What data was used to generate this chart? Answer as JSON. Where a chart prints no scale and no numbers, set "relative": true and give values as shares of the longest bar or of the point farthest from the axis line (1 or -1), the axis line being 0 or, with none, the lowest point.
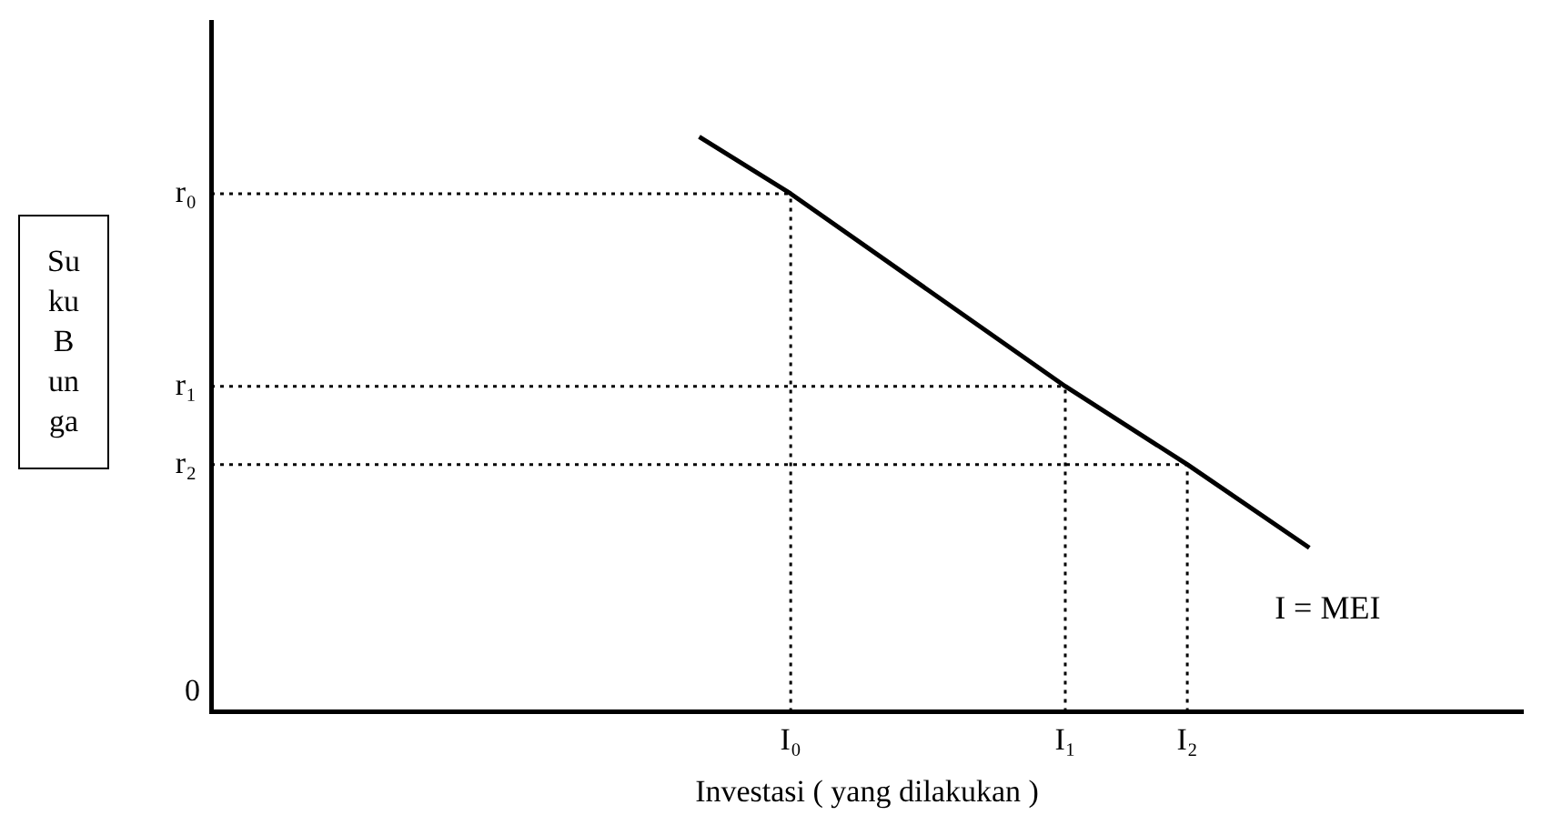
{
  "chart_data": {
    "type": "line",
    "relative": true,
    "xlabel": "Investasi ( yang dilakukan )",
    "ylabel": "Su ku B un ga",
    "categories": [
      null,
      null,
      null,
      null,
      null,
      null,
      null,
      null,
      null,
      null,
      null,
      null,
      null,
      null,
      null,
      null,
      null,
      null,
      null,
      "I₀",
      null,
      null,
      null,
      null,
      null,
      null,
      null,
      null,
      "I₁",
      null,
      null,
      null,
      "I₂",
      null,
      null,
      null,
      null,
      null,
      null,
      null,
      null,
      null,
      null,
      null
    ],
    "grid": false,
    "legend": false,
    "marker": "none",
    "series": [
      {
        "color": "#000000",
        "line_style": "solid",
        "values": [
          null,
          null,
          null,
          null,
          null,
          null,
          null,
          null,
          null,
          null,
          null,
          null,
          null,
          null,
          null,
          null,
          1,
          null,
          null,
          0.901,
          null,
          null,
          null,
          null,
          null,
          null,
          null,
          null,
          0.566,
          null,
          null,
          null,
          0.43,
          null,
          null,
          null,
          0.285,
          null,
          null,
          null,
          null,
          null,
          null,
          null
        ]
      }
    ],
    "ref_lines": [
      {
        "axis": "y",
        "value": 0.901,
        "label": "r₀",
        "color": "#000000",
        "line_style": "dotted"
      },
      {
        "axis": "y",
        "value": 0.566,
        "label": "r₁",
        "color": "#000000",
        "line_style": "dotted"
      },
      {
        "axis": "y",
        "value": 0.43,
        "label": "r₂",
        "color": "#000000",
        "line_style": "dotted"
      },
      {
        "axis": "x",
        "value": "I₀",
        "color": "#000000",
        "line_style": "dotted"
      },
      {
        "axis": "x",
        "value": "I₁",
        "color": "#000000",
        "line_style": "dotted"
      },
      {
        "axis": "x",
        "value": "I₂",
        "color": "#000000",
        "line_style": "dotted"
      }
    ],
    "annotations": [
      "I = MEI",
      "0"
    ]
  }
}
